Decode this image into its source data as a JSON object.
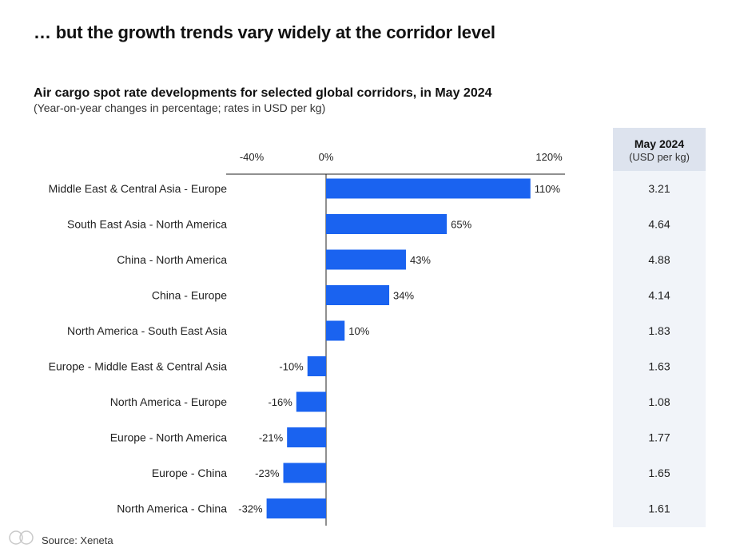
{
  "heading": "… but the growth trends vary widely at the corridor level",
  "source": "Source: Xeneta",
  "rates_header": {
    "line1": "May 2024",
    "line2": "(USD per kg)"
  },
  "chart_data": {
    "type": "bar",
    "orientation": "horizontal",
    "title": "Air cargo spot rate developments for selected global corridors, in May 2024",
    "subtitle": "(Year-on-year changes in percentage; rates in USD per kg)",
    "xlim": [
      -40,
      120
    ],
    "x_ticks": [
      {
        "value": -40,
        "label": "-40%"
      },
      {
        "value": 0,
        "label": "0%"
      },
      {
        "value": 120,
        "label": "120%"
      }
    ],
    "bar_color": "#1a63f0",
    "categories": [
      "Middle East & Central Asia - Europe",
      "South East Asia - North America",
      "China - North America",
      "China - Europe",
      "North America - South East Asia",
      "Europe - Middle East & Central Asia",
      "North America - Europe",
      "Europe - North America",
      "Europe - China",
      "North America - China"
    ],
    "values": [
      110,
      65,
      43,
      34,
      10,
      -10,
      -16,
      -21,
      -23,
      -32
    ],
    "value_labels": [
      "110%",
      "65%",
      "43%",
      "34%",
      "10%",
      "-10%",
      "-16%",
      "-21%",
      "-23%",
      "-32%"
    ],
    "rates": [
      "3.21",
      "4.64",
      "4.88",
      "4.14",
      "1.83",
      "1.63",
      "1.08",
      "1.77",
      "1.65",
      "1.61"
    ]
  }
}
